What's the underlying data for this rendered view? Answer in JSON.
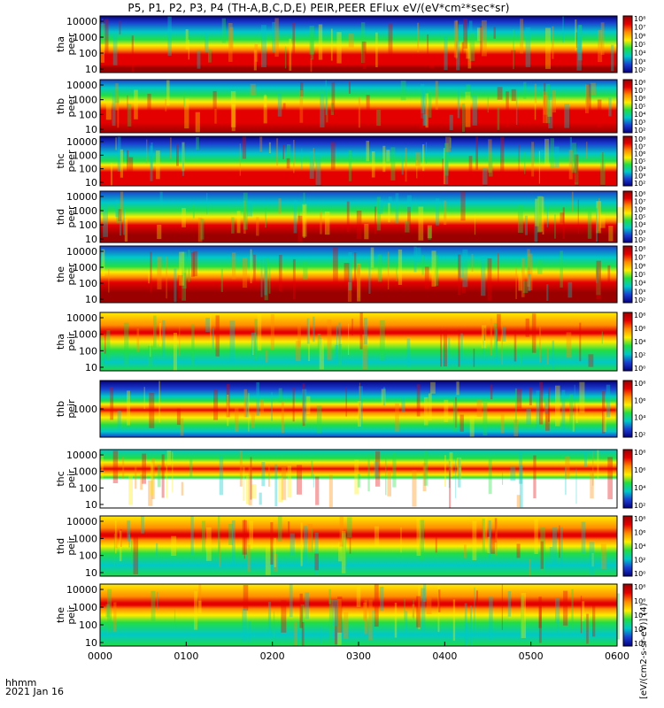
{
  "title": "P5, P1, P2, P3, P4 (TH-A,B,C,D,E) PEIR,PEER EFlux eV/(eV*cm²*sec*sr)",
  "time_axis": {
    "label_line1": "hhmm",
    "label_line2": "2021 Jan 16",
    "ticks": [
      "0000",
      "0100",
      "0200",
      "0300",
      "0400",
      "0500",
      "0600"
    ]
  },
  "colorbar_title": "[eV/(cm2-s-sr-eV)] (4)",
  "colors": {
    "dark_red": "#9a0000",
    "red": "#e50000",
    "orange": "#ff8c00",
    "yellow": "#ffee00",
    "green": "#22dd44",
    "cyan": "#00c8c8",
    "blue": "#1a3fd0",
    "navy": "#050080"
  },
  "chart_data": {
    "type": "heatmap",
    "x_range_hours": [
      0,
      6
    ],
    "panels": [
      {
        "label1": "tha",
        "label2": "peer",
        "yticks": [
          "10",
          "100",
          "1000",
          "10000"
        ],
        "cb_ticks": [
          "10²",
          "10³",
          "10⁴",
          "10⁵",
          "10⁶",
          "10⁷",
          "10⁸"
        ],
        "profile": [
          [
            "navy",
            0.0
          ],
          [
            "blue",
            0.12
          ],
          [
            "cyan",
            0.28
          ],
          [
            "green",
            0.42
          ],
          [
            "yellow",
            0.52
          ],
          [
            "orange",
            0.6
          ],
          [
            "red",
            0.68
          ],
          [
            "red",
            0.85
          ],
          [
            "dark_red",
            0.92
          ],
          [
            "dark_red",
            1.0
          ]
        ]
      },
      {
        "label1": "thb",
        "label2": "peer",
        "yticks": [
          "10",
          "100",
          "1000",
          "10000"
        ],
        "cb_ticks": [
          "10²",
          "10³",
          "10⁴",
          "10⁵",
          "10⁶",
          "10⁷",
          "10⁸"
        ],
        "profile": [
          [
            "blue",
            0.0
          ],
          [
            "cyan",
            0.15
          ],
          [
            "green",
            0.3
          ],
          [
            "yellow",
            0.42
          ],
          [
            "orange",
            0.5
          ],
          [
            "red",
            0.58
          ],
          [
            "red",
            0.8
          ],
          [
            "dark_red",
            1.0
          ]
        ]
      },
      {
        "label1": "thc",
        "label2": "peer",
        "yticks": [
          "10",
          "100",
          "1000",
          "10000"
        ],
        "cb_ticks": [
          "10²",
          "10³",
          "10⁴",
          "10⁵",
          "10⁶",
          "10⁷",
          "10⁸"
        ],
        "profile": [
          [
            "navy",
            0.0
          ],
          [
            "blue",
            0.15
          ],
          [
            "cyan",
            0.35
          ],
          [
            "green",
            0.5
          ],
          [
            "yellow",
            0.58
          ],
          [
            "orange",
            0.64
          ],
          [
            "red",
            0.72
          ],
          [
            "red",
            1.0
          ]
        ]
      },
      {
        "label1": "thd",
        "label2": "peer",
        "yticks": [
          "10",
          "100",
          "1000",
          "10000"
        ],
        "cb_ticks": [
          "10²",
          "10³",
          "10⁴",
          "10⁵",
          "10⁶",
          "10⁷",
          "10⁸"
        ],
        "profile": [
          [
            "blue",
            0.0
          ],
          [
            "cyan",
            0.22
          ],
          [
            "green",
            0.38
          ],
          [
            "yellow",
            0.5
          ],
          [
            "orange",
            0.58
          ],
          [
            "red",
            0.66
          ],
          [
            "dark_red",
            0.85
          ],
          [
            "dark_red",
            1.0
          ]
        ]
      },
      {
        "label1": "the",
        "label2": "peer",
        "yticks": [
          "10",
          "100",
          "1000",
          "10000"
        ],
        "cb_ticks": [
          "10²",
          "10³",
          "10⁴",
          "10⁵",
          "10⁶",
          "10⁷",
          "10⁸"
        ],
        "profile": [
          [
            "blue",
            0.0
          ],
          [
            "cyan",
            0.2
          ],
          [
            "green",
            0.36
          ],
          [
            "yellow",
            0.46
          ],
          [
            "orange",
            0.55
          ],
          [
            "red",
            0.64
          ],
          [
            "dark_red",
            0.82
          ],
          [
            "dark_red",
            1.0
          ]
        ]
      },
      {
        "label1": "tha",
        "label2": "peir",
        "yticks": [
          "10",
          "100",
          "1000",
          "10000"
        ],
        "cb_ticks": [
          "10⁰",
          "10²",
          "10⁴",
          "10⁶",
          "10⁸"
        ],
        "profile": [
          [
            "yellow",
            0.0
          ],
          [
            "orange",
            0.22
          ],
          [
            "red",
            0.33
          ],
          [
            "red",
            0.36
          ],
          [
            "orange",
            0.42
          ],
          [
            "yellow",
            0.5
          ],
          [
            "green",
            0.65
          ],
          [
            "cyan",
            0.85
          ],
          [
            "green",
            1.0
          ]
        ]
      },
      {
        "label1": "thb",
        "label2": "peir",
        "yticks": [
          "1000"
        ],
        "cb_ticks": [
          "10²",
          "10⁴",
          "10⁶",
          "10⁸"
        ],
        "profile": [
          [
            "navy",
            0.0
          ],
          [
            "blue",
            0.15
          ],
          [
            "cyan",
            0.28
          ],
          [
            "green",
            0.36
          ],
          [
            "yellow",
            0.42
          ],
          [
            "orange",
            0.47
          ],
          [
            "red",
            0.52
          ],
          [
            "orange",
            0.57
          ],
          [
            "yellow",
            0.65
          ],
          [
            "green",
            0.78
          ],
          [
            "cyan",
            0.9
          ],
          [
            "blue",
            1.0
          ]
        ]
      },
      {
        "label1": "thc",
        "label2": "peir",
        "yticks": [
          "10",
          "100",
          "1000",
          "10000"
        ],
        "cb_ticks": [
          "10²",
          "10⁴",
          "10⁶",
          "10⁸"
        ],
        "profile": [
          [
            "cyan",
            0.0
          ],
          [
            "green",
            0.15
          ],
          [
            "yellow",
            0.22
          ],
          [
            "orange",
            0.28
          ],
          [
            "red",
            0.33
          ],
          [
            "orange",
            0.38
          ],
          [
            "yellow",
            0.43
          ],
          [
            "green",
            0.48
          ],
          [
            "white",
            0.52
          ],
          [
            "white",
            1.0
          ]
        ]
      },
      {
        "label1": "thd",
        "label2": "peir",
        "yticks": [
          "10",
          "100",
          "1000",
          "10000"
        ],
        "cb_ticks": [
          "10⁰",
          "10²",
          "10⁴",
          "10⁶",
          "10⁸"
        ],
        "profile": [
          [
            "yellow",
            0.0
          ],
          [
            "orange",
            0.2
          ],
          [
            "red",
            0.3
          ],
          [
            "red",
            0.34
          ],
          [
            "orange",
            0.4
          ],
          [
            "yellow",
            0.5
          ],
          [
            "green",
            0.62
          ],
          [
            "cyan",
            0.82
          ],
          [
            "green",
            1.0
          ]
        ]
      },
      {
        "label1": "the",
        "label2": "peir",
        "yticks": [
          "10",
          "100",
          "1000",
          "10000"
        ],
        "cb_ticks": [
          "10⁰",
          "10²",
          "10⁴",
          "10⁶",
          "10⁸"
        ],
        "profile": [
          [
            "yellow",
            0.0
          ],
          [
            "orange",
            0.2
          ],
          [
            "red",
            0.3
          ],
          [
            "red",
            0.34
          ],
          [
            "orange",
            0.4
          ],
          [
            "yellow",
            0.5
          ],
          [
            "green",
            0.62
          ],
          [
            "cyan",
            0.82
          ],
          [
            "green",
            1.0
          ]
        ]
      }
    ]
  }
}
